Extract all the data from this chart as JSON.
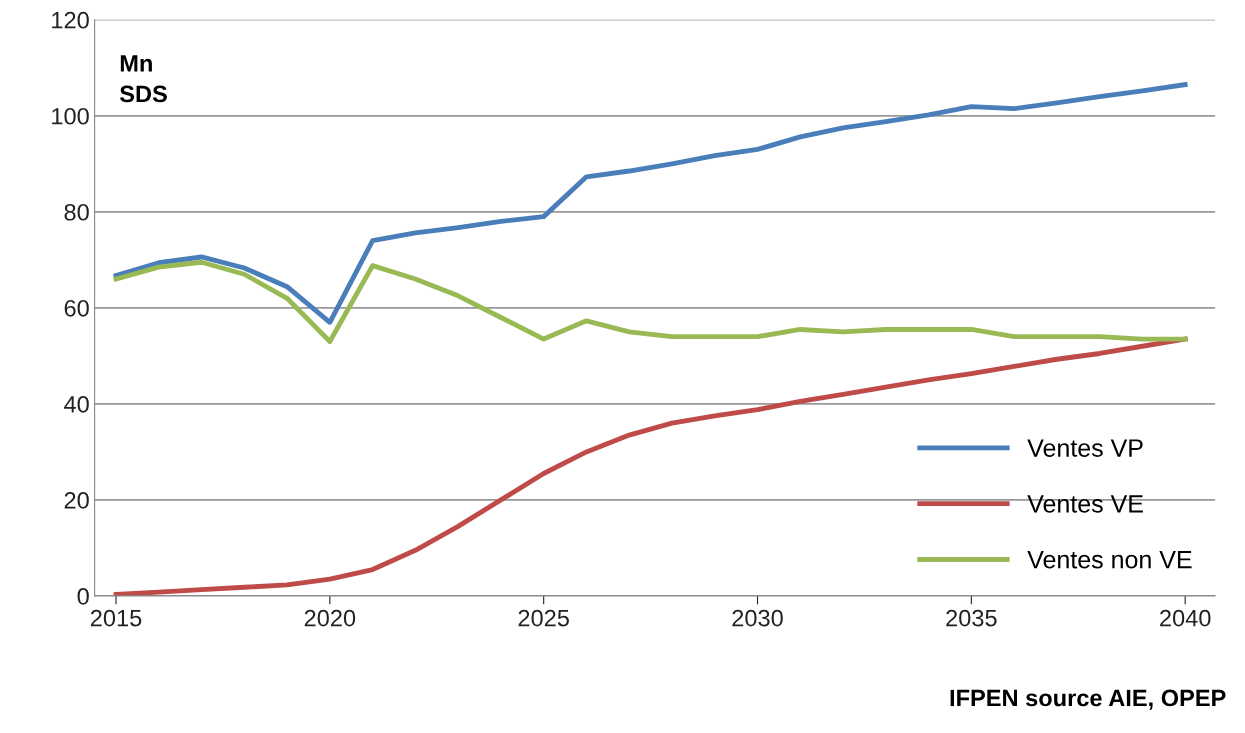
{
  "chart_data": {
    "type": "line",
    "annotations": [
      "Mn\nSDS",
      "IFPEN source AIE, OPEP"
    ],
    "x": [
      2015,
      2016,
      2017,
      2018,
      2019,
      2020,
      2021,
      2022,
      2023,
      2024,
      2025,
      2026,
      2027,
      2028,
      2029,
      2030,
      2031,
      2032,
      2033,
      2034,
      2035,
      2036,
      2037,
      2038,
      2039,
      2040
    ],
    "series": [
      {
        "name": "Ventes VP",
        "color": "#4a7ebb",
        "values": [
          66.7,
          69.4,
          70.6,
          68.3,
          64.4,
          57,
          74,
          75.6,
          76.7,
          78,
          79,
          87.3,
          88.5,
          90,
          91.7,
          93,
          95.6,
          97.5,
          98.8,
          100.2,
          101.9,
          101.5,
          102.7,
          104,
          105.2,
          106.5
        ]
      },
      {
        "name": "Ventes VE",
        "color": "#be4b48",
        "values": [
          0.3,
          0.8,
          1.3,
          1.8,
          2.3,
          3.5,
          5.5,
          9.5,
          14.5,
          20,
          25.5,
          30,
          33.5,
          36,
          37.5,
          38.8,
          40.5,
          42,
          43.5,
          45,
          46.3,
          47.8,
          49.3,
          50.5,
          52,
          53.5
        ]
      },
      {
        "name": "Ventes non VE",
        "color": "#98b954",
        "values": [
          66,
          68.5,
          69.5,
          67,
          62,
          53,
          68.8,
          66,
          62.5,
          58,
          53.5,
          57.3,
          55,
          54,
          54,
          54,
          55.5,
          55,
          55.5,
          55.5,
          55.5,
          54,
          54,
          54,
          53.5,
          53.5
        ]
      }
    ],
    "xlim": [
      2014.5,
      2040.7
    ],
    "xticks": [
      2015,
      2020,
      2025,
      2030,
      2035,
      2040
    ],
    "ylim": [
      0,
      120
    ],
    "yticks": [
      0,
      20,
      40,
      60,
      80,
      100,
      120
    ],
    "grid": "y",
    "legend": "bottom right",
    "marker": "none",
    "line_style": "solid"
  }
}
